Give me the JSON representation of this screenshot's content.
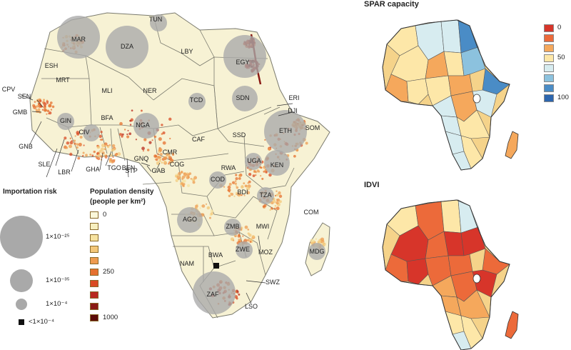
{
  "colors": {
    "land_base": "#f7f2d4",
    "country_border": "#7a7a6e",
    "bubble": "#a9a9a9",
    "density": [
      "#fbf8da",
      "#f7efbf",
      "#f6e2a0",
      "#f3c77a",
      "#ee9b50",
      "#e5702f",
      "#d94b24",
      "#b8291e",
      "#8a1a14",
      "#5b0b08"
    ],
    "scale": [
      "#d7352a",
      "#ec6a3a",
      "#f5a85c",
      "#fde7a8",
      "#d7ecf0",
      "#8cc2de",
      "#4a8cc6",
      "#2d66ae"
    ]
  },
  "main_map": {
    "country_labels": [
      "TUN",
      "MAR",
      "DZA",
      "LBY",
      "EGY",
      "ESH",
      "MRT",
      "MLI",
      "NER",
      "TCD",
      "SDN",
      "ERI",
      "DJI",
      "SOM",
      "ETH",
      "SSD",
      "CAF",
      "CMR",
      "NGA",
      "BEN",
      "TGO",
      "GHA",
      "CIV",
      "BFA",
      "LBR",
      "SLE",
      "GIN",
      "GNB",
      "GMB",
      "SEN",
      "CPV",
      "GNQ",
      "STP",
      "GAB",
      "COG",
      "COD",
      "RWA",
      "BDI",
      "UGA",
      "KEN",
      "TZA",
      "AGO",
      "ZMB",
      "MWI",
      "ZWE",
      "MOZ",
      "MDG",
      "COM",
      "NAM",
      "BWA",
      "ZAF",
      "SWZ",
      "LSO"
    ],
    "bubbles": [
      {
        "code": "MAR",
        "risk_tier": "1×10⁻²⁵"
      },
      {
        "code": "DZA",
        "risk_tier": "1×10⁻²⁵"
      },
      {
        "code": "EGY",
        "risk_tier": "1×10⁻²⁵"
      },
      {
        "code": "ETH",
        "risk_tier": "1×10⁻²⁵"
      },
      {
        "code": "ZAF",
        "risk_tier": "1×10⁻²⁵"
      },
      {
        "code": "NGA",
        "risk_tier": "1×10⁻³⁵"
      },
      {
        "code": "SDN",
        "risk_tier": "1×10⁻³⁵"
      },
      {
        "code": "KEN",
        "risk_tier": "1×10⁻³⁵"
      },
      {
        "code": "AGO",
        "risk_tier": "1×10⁻³⁵"
      },
      {
        "code": "TCD",
        "risk_tier": "1×10⁻⁴"
      },
      {
        "code": "COD",
        "risk_tier": "1×10⁻⁴"
      },
      {
        "code": "TZA",
        "risk_tier": "1×10⁻⁴"
      },
      {
        "code": "ZMB",
        "risk_tier": "1×10⁻⁴"
      },
      {
        "code": "ZWE",
        "risk_tier": "1×10⁻⁴"
      },
      {
        "code": "MDG",
        "risk_tier": "1×10⁻⁴"
      },
      {
        "code": "UGA",
        "risk_tier": "1×10⁻⁴"
      },
      {
        "code": "GIN",
        "risk_tier": "1×10⁻⁴"
      },
      {
        "code": "CIV",
        "risk_tier": "1×10⁻⁴"
      },
      {
        "code": "TUN",
        "risk_tier": "1×10⁻⁴"
      },
      {
        "code": "BWA",
        "risk_tier": "<1×10⁻⁴"
      }
    ]
  },
  "legend": {
    "importation": {
      "heading": "Importation risk",
      "items": [
        "1×10⁻²⁵",
        "1×10⁻³⁵",
        "1×10⁻⁴",
        "<1×10⁻⁴"
      ]
    },
    "density": {
      "heading": "Population density",
      "subheading": "(people per km²)",
      "tick_labels": [
        {
          "index": 0,
          "label": "0"
        },
        {
          "index": 5,
          "label": "250"
        },
        {
          "index": 9,
          "label": "1000"
        }
      ]
    }
  },
  "spar": {
    "title": "SPAR capacity",
    "tick_labels": [
      {
        "index": 0,
        "label": "0"
      },
      {
        "index": 3,
        "label": "50"
      },
      {
        "index": 7,
        "label": "100"
      }
    ]
  },
  "idvi": {
    "title": "IDVI"
  }
}
